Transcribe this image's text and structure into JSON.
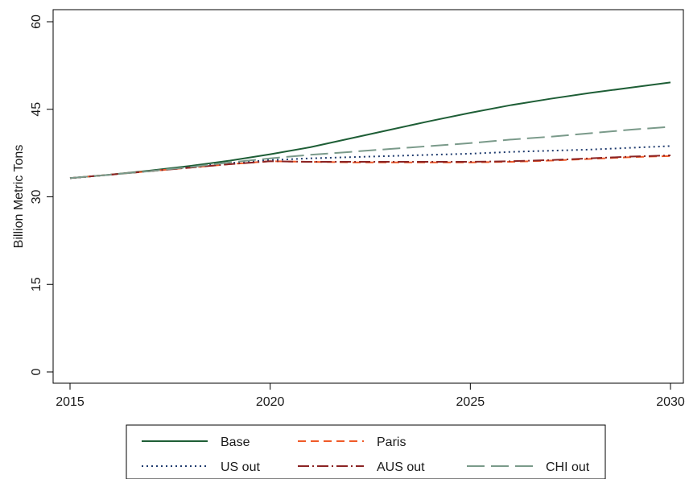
{
  "chart_data": {
    "type": "line",
    "title": "",
    "xlabel": "",
    "ylabel": "Billion Metric Tons",
    "xlim": [
      2015,
      2030
    ],
    "ylim": [
      0,
      60
    ],
    "xticks": [
      "2015",
      "2020",
      "2025",
      "2030"
    ],
    "yticks": [
      "0",
      "15",
      "30",
      "45",
      "60"
    ],
    "grid": false,
    "legend_position": "bottom",
    "x": [
      2015,
      2016,
      2017,
      2018,
      2019,
      2020,
      2021,
      2022,
      2023,
      2024,
      2025,
      2026,
      2027,
      2028,
      2029,
      2030
    ],
    "series": [
      {
        "name": "Base",
        "color": "#1e5e36",
        "dash": "solid",
        "values": [
          33.2,
          33.8,
          34.5,
          35.3,
          36.2,
          37.3,
          38.5,
          40.0,
          41.5,
          43.0,
          44.4,
          45.7,
          46.8,
          47.8,
          48.7,
          49.6
        ]
      },
      {
        "name": "Paris",
        "color": "#f05a28",
        "dash": "dash",
        "values": [
          33.2,
          33.8,
          34.4,
          35.0,
          35.6,
          36.1,
          36.0,
          35.9,
          35.9,
          35.9,
          35.9,
          36.0,
          36.2,
          36.5,
          36.8,
          37.0
        ]
      },
      {
        "name": "US out",
        "color": "#1f3b6e",
        "dash": "dot",
        "values": [
          33.2,
          33.8,
          34.4,
          35.1,
          35.8,
          36.3,
          36.6,
          36.8,
          37.0,
          37.2,
          37.4,
          37.7,
          37.9,
          38.1,
          38.4,
          38.7
        ]
      },
      {
        "name": "AUS out",
        "color": "#8b2323",
        "dash": "dashdot",
        "values": [
          33.2,
          33.8,
          34.4,
          35.0,
          35.6,
          36.1,
          36.0,
          36.0,
          36.0,
          36.0,
          36.0,
          36.1,
          36.3,
          36.6,
          36.9,
          37.1
        ]
      },
      {
        "name": "CHI out",
        "color": "#7a9a8a",
        "dash": "longdash",
        "values": [
          33.2,
          33.8,
          34.4,
          35.1,
          35.9,
          36.6,
          37.2,
          37.7,
          38.2,
          38.7,
          39.2,
          39.8,
          40.3,
          40.9,
          41.5,
          42.0
        ]
      }
    ]
  }
}
